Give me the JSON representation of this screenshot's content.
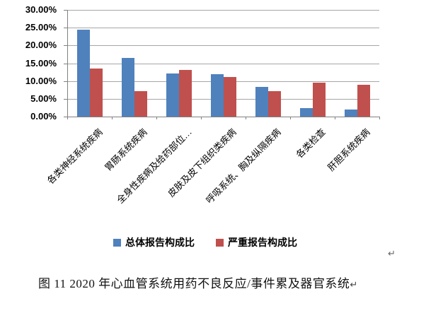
{
  "chart_data": {
    "type": "bar",
    "title": "",
    "xlabel": "",
    "ylabel": "",
    "categories": [
      "各类神经系统疾病",
      "胃肠系统疾病",
      "全身性疾病及给药部位…",
      "皮肤及皮下组织类疾病",
      "呼吸系统、胸及纵隔疾病",
      "各类检查",
      "肝胆系统疾病"
    ],
    "series": [
      {
        "name": "总体报告构成比",
        "color": "#4F81BD",
        "values": [
          24.5,
          16.5,
          12.2,
          11.9,
          8.3,
          2.4,
          1.9
        ]
      },
      {
        "name": "严重报告构成比",
        "color": "#C0504D",
        "values": [
          13.6,
          7.2,
          13.1,
          11.2,
          7.1,
          9.6,
          8.9
        ]
      }
    ],
    "ylim": [
      0,
      30
    ],
    "y_ticks": [
      "30.00%",
      "25.00%",
      "20.00%",
      "15.00%",
      "10.00%",
      "5.00%",
      "0.00%"
    ],
    "grid": true,
    "legend_position": "bottom"
  },
  "caption": {
    "text": "图 11  2020 年心血管系统用药不良反应/事件累及器官系统",
    "paragraph_mark": "↵"
  },
  "floating_paragraph_mark": "↵",
  "colors": {
    "axis": "#808080",
    "gridline": "#a6a6a6",
    "series_blue": "#4F81BD",
    "series_red": "#C0504D",
    "background": "#ffffff"
  }
}
